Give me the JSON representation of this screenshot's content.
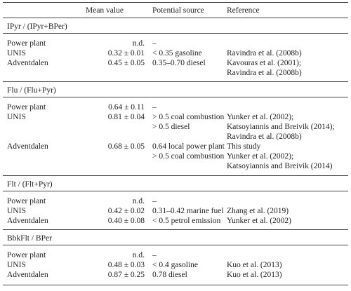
{
  "header": {
    "mean_value": "Mean value",
    "potential_source": "Potential source",
    "reference": "Reference"
  },
  "sections": [
    {
      "title": "IPyr / (IPyr+BPer)",
      "rows": [
        {
          "site": "Power plant",
          "mean": "n.d.",
          "source": "–",
          "reference": ""
        },
        {
          "site": "UNIS",
          "mean": "0.32 ± 0.01",
          "source": "< 0.35 gasoline",
          "reference": "Ravindra et al. (2008b)"
        },
        {
          "site": "Adventdalen",
          "mean": "0.45 ± 0.05",
          "source": "0.35–0.70 diesel",
          "reference": "Kavouras et al. (2001);"
        },
        {
          "site": "",
          "mean": "",
          "source": "",
          "reference": "Ravindra et al. (2008b)"
        }
      ]
    },
    {
      "title": "Flu / (Flu+Pyr)",
      "rows": [
        {
          "site": "Power plant",
          "mean": "0.64 ± 0.11",
          "source": "–",
          "reference": ""
        },
        {
          "site": "UNIS",
          "mean": "0.81 ± 0.04",
          "source": "> 0.5 coal combustion",
          "reference": "Yunker et al. (2002);"
        },
        {
          "site": "",
          "mean": "",
          "source": "> 0.5 diesel",
          "reference": "Katsoyiannis and Breivik (2014);"
        },
        {
          "site": "",
          "mean": "",
          "source": "",
          "reference": "Ravindra et al. (2008b)"
        },
        {
          "site": "Adventdalen",
          "mean": "0.68 ± 0.05",
          "source": "0.64 local power plant",
          "reference": "This study"
        },
        {
          "site": "",
          "mean": "",
          "source": "> 0.5 coal combustion",
          "reference": "Yunker et al. (2002);"
        },
        {
          "site": "",
          "mean": "",
          "source": "",
          "reference": "Katsoyiannis and Breivik (2014)"
        }
      ]
    },
    {
      "title": "Flt / (Flt+Pyr)",
      "rows": [
        {
          "site": "Power plant",
          "mean": "n.d.",
          "source": "–",
          "reference": ""
        },
        {
          "site": "UNIS",
          "mean": "0.42 ± 0.02",
          "source": "0.31–0.42 marine fuel",
          "reference": "Zhang et al. (2019)"
        },
        {
          "site": "Adventdalen",
          "mean": "0.40 ± 0.08",
          "source": "< 0.5 petrol emission",
          "reference": "Yunker et al. (2002)"
        }
      ]
    },
    {
      "title": "BbkFlt / BPer",
      "rows": [
        {
          "site": "Power plant",
          "mean": "n.d.",
          "source": "–",
          "reference": ""
        },
        {
          "site": "UNIS",
          "mean": "0.48 ± 0.03",
          "source": "< 0.4 gasoline",
          "reference": "Kuo et al. (2013)"
        },
        {
          "site": "Adventdalen",
          "mean": "0.87 ± 0.25",
          "source": "0.78 diesel",
          "reference": "Kuo et al. (2013)"
        }
      ]
    }
  ]
}
